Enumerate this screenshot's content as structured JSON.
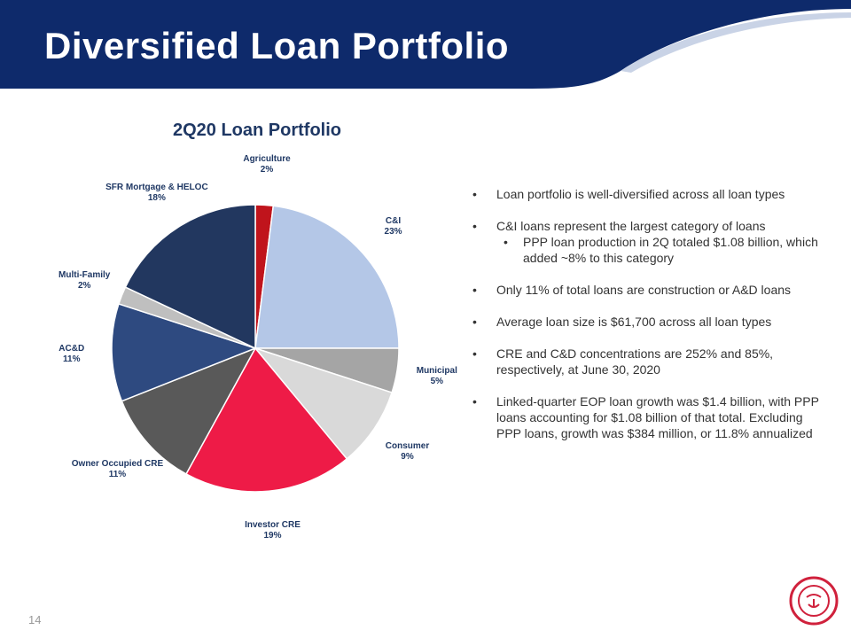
{
  "header": {
    "title": "Diversified Loan Portfolio"
  },
  "chart_data": {
    "type": "pie",
    "title": "2Q20 Loan Portfolio",
    "categories": [
      "Agriculture",
      "C&I",
      "Municipal",
      "Consumer",
      "Investor CRE",
      "Owner Occupied CRE",
      "AC&D",
      "Multi-Family",
      "SFR Mortgage & HELOC"
    ],
    "values": [
      2,
      23,
      5,
      9,
      19,
      11,
      11,
      2,
      18
    ],
    "value_labels": [
      "2%",
      "23%",
      "5%",
      "9%",
      "19%",
      "11%",
      "11%",
      "2%",
      "18%"
    ],
    "colors": [
      "#c0141c",
      "#b4c7e7",
      "#a5a5a5",
      "#d9d9d9",
      "#ee1b47",
      "#595959",
      "#2e4a80",
      "#bfbfbf",
      "#22375f"
    ]
  },
  "bullets": [
    {
      "text": "Loan portfolio is well-diversified across all loan types"
    },
    {
      "text": "C&I loans represent the largest category of loans",
      "children": [
        "PPP loan production in 2Q totaled $1.08 billion, which added ~8% to this category"
      ]
    },
    {
      "text": "Only 11% of total loans are construction or A&D loans"
    },
    {
      "text": "Average loan size is $61,700 across all loan types"
    },
    {
      "text": "CRE and C&D concentrations are 252% and 85%, respectively, at June 30, 2020"
    },
    {
      "text": "Linked-quarter EOP loan growth was $1.4 billion, with PPP loans accounting for $1.08 billion of that total.  Excluding PPP loans, growth was $384 million, or 11.8% annualized"
    }
  ],
  "footer": {
    "page": "14"
  }
}
